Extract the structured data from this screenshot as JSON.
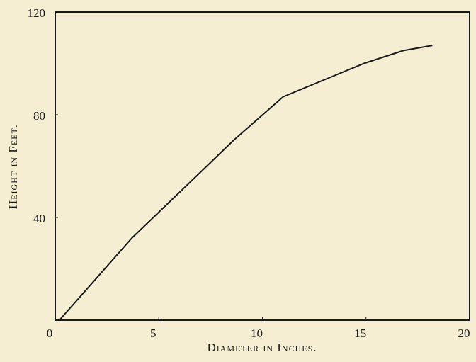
{
  "chart_data": {
    "type": "line",
    "x_label": "Diameter in Inches.",
    "y_label": "Height in Feet.",
    "x": [
      0.2,
      3.7,
      6.8,
      8.6,
      11.0,
      13.1,
      14.9,
      16.8,
      18.2
    ],
    "series": [
      {
        "color": "#1a1a1a",
        "values": [
          0,
          32,
          56,
          70,
          87,
          94,
          100,
          105,
          107
        ]
      }
    ],
    "xlim": [
      0,
      20
    ],
    "xticks": [
      0,
      5,
      10,
      15,
      20
    ],
    "ylim": [
      0,
      120
    ],
    "yticks": [
      40,
      80,
      120
    ],
    "grid": false
  }
}
